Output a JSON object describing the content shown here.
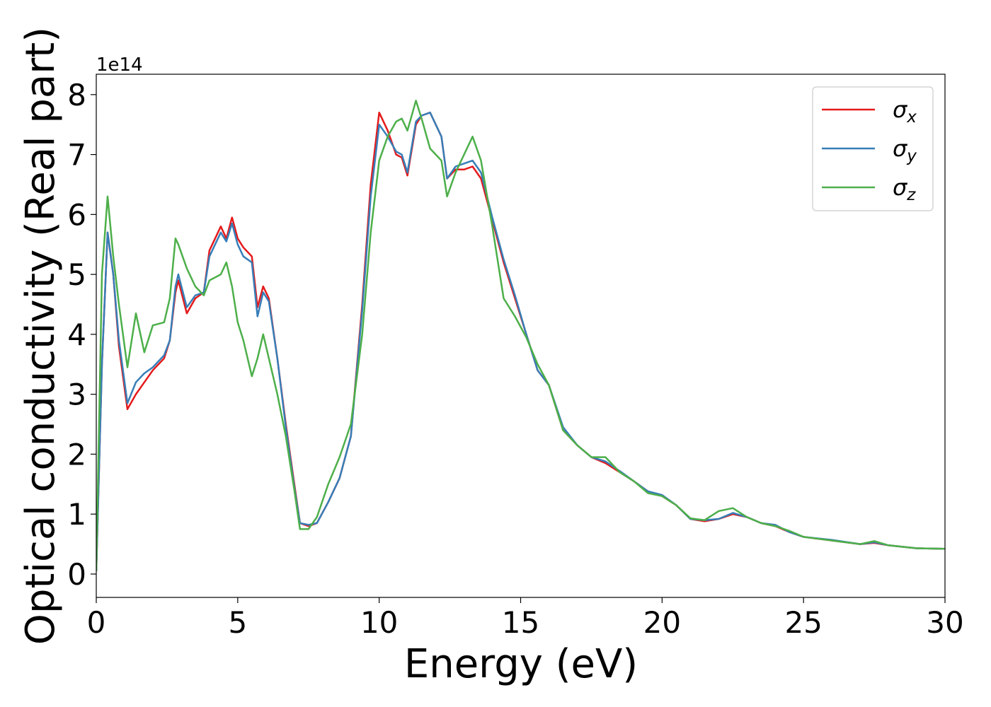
{
  "chart_data": {
    "type": "line",
    "x_label": "Energy (eV)",
    "y_label": "Optical conductivity (Real part)",
    "y_offset_label": "1e14",
    "xlim": [
      0,
      30
    ],
    "ylim": [
      -0.39,
      8.34
    ],
    "xticks": [
      0,
      5,
      10,
      15,
      20,
      25,
      30
    ],
    "yticks": [
      0,
      1,
      2,
      3,
      4,
      5,
      6,
      7,
      8
    ],
    "legend": "upper right",
    "x": [
      0,
      0.2,
      0.4,
      0.6,
      0.8,
      1.1,
      1.4,
      1.7,
      2.0,
      2.4,
      2.6,
      2.8,
      2.9,
      3.2,
      3.5,
      3.8,
      4.0,
      4.2,
      4.4,
      4.6,
      4.8,
      5.0,
      5.2,
      5.5,
      5.7,
      5.9,
      6.1,
      6.4,
      6.7,
      7.0,
      7.2,
      7.5,
      7.8,
      8.2,
      8.6,
      9.0,
      9.4,
      9.7,
      10.0,
      10.3,
      10.6,
      10.8,
      11.0,
      11.3,
      11.5,
      11.8,
      12.2,
      12.4,
      12.7,
      13.0,
      13.3,
      13.6,
      14.0,
      14.4,
      14.8,
      15.2,
      15.6,
      16.0,
      16.5,
      17.0,
      17.5,
      18.0,
      18.5,
      19.0,
      19.5,
      20.0,
      20.5,
      21.0,
      21.5,
      22.0,
      22.5,
      23.0,
      23.5,
      24.0,
      24.5,
      25.0,
      26.0,
      27.0,
      27.5,
      28.0,
      29.0,
      30.0
    ],
    "series": [
      {
        "name": "σx",
        "color": "#e41a1c",
        "values": [
          0.05,
          3.5,
          5.7,
          5.0,
          3.8,
          2.75,
          3.0,
          3.2,
          3.4,
          3.6,
          3.9,
          4.7,
          4.9,
          4.35,
          4.6,
          4.7,
          5.4,
          5.6,
          5.8,
          5.6,
          5.95,
          5.6,
          5.45,
          5.3,
          4.45,
          4.8,
          4.6,
          3.6,
          2.5,
          1.5,
          0.85,
          0.8,
          0.85,
          1.2,
          1.6,
          2.3,
          4.5,
          6.5,
          7.7,
          7.4,
          7.0,
          6.95,
          6.65,
          7.5,
          7.65,
          7.7,
          7.3,
          6.6,
          6.75,
          6.75,
          6.8,
          6.6,
          5.9,
          5.2,
          4.6,
          4.0,
          3.4,
          3.15,
          2.4,
          2.15,
          1.95,
          1.85,
          1.7,
          1.55,
          1.38,
          1.3,
          1.15,
          0.92,
          0.88,
          0.92,
          1.0,
          0.95,
          0.85,
          0.8,
          0.7,
          0.62,
          0.56,
          0.5,
          0.52,
          0.48,
          0.43,
          0.42
        ]
      },
      {
        "name": "σy",
        "color": "#377eb8",
        "values": [
          0.05,
          3.5,
          5.7,
          5.0,
          3.9,
          2.85,
          3.2,
          3.35,
          3.45,
          3.65,
          3.9,
          4.8,
          5.0,
          4.45,
          4.65,
          4.7,
          5.3,
          5.5,
          5.7,
          5.55,
          5.85,
          5.5,
          5.3,
          5.2,
          4.3,
          4.7,
          4.55,
          3.6,
          2.45,
          1.45,
          0.85,
          0.82,
          0.85,
          1.2,
          1.6,
          2.3,
          4.4,
          6.3,
          7.5,
          7.3,
          7.05,
          7.0,
          6.7,
          7.55,
          7.65,
          7.7,
          7.3,
          6.6,
          6.8,
          6.85,
          6.9,
          6.7,
          5.95,
          5.25,
          4.65,
          4.0,
          3.4,
          3.15,
          2.45,
          2.15,
          1.95,
          1.88,
          1.72,
          1.55,
          1.38,
          1.32,
          1.15,
          0.92,
          0.9,
          0.92,
          1.02,
          0.95,
          0.85,
          0.82,
          0.7,
          0.62,
          0.57,
          0.5,
          0.53,
          0.48,
          0.43,
          0.42
        ]
      },
      {
        "name": "σz",
        "color": "#4daf4a",
        "values": [
          0.05,
          5.0,
          6.3,
          5.3,
          4.5,
          3.45,
          4.35,
          3.7,
          4.15,
          4.2,
          4.6,
          5.6,
          5.5,
          5.1,
          4.8,
          4.65,
          4.9,
          4.95,
          5.0,
          5.2,
          4.8,
          4.2,
          3.9,
          3.3,
          3.6,
          4.0,
          3.6,
          3.0,
          2.3,
          1.4,
          0.75,
          0.75,
          0.95,
          1.5,
          1.95,
          2.5,
          4.0,
          5.7,
          6.9,
          7.3,
          7.55,
          7.6,
          7.4,
          7.9,
          7.6,
          7.1,
          6.9,
          6.3,
          6.7,
          7.0,
          7.3,
          6.9,
          5.8,
          4.6,
          4.3,
          3.95,
          3.5,
          3.15,
          2.4,
          2.15,
          1.95,
          1.95,
          1.7,
          1.55,
          1.35,
          1.3,
          1.15,
          0.93,
          0.9,
          1.05,
          1.1,
          0.95,
          0.85,
          0.8,
          0.72,
          0.62,
          0.56,
          0.5,
          0.55,
          0.48,
          0.43,
          0.42
        ]
      }
    ]
  }
}
